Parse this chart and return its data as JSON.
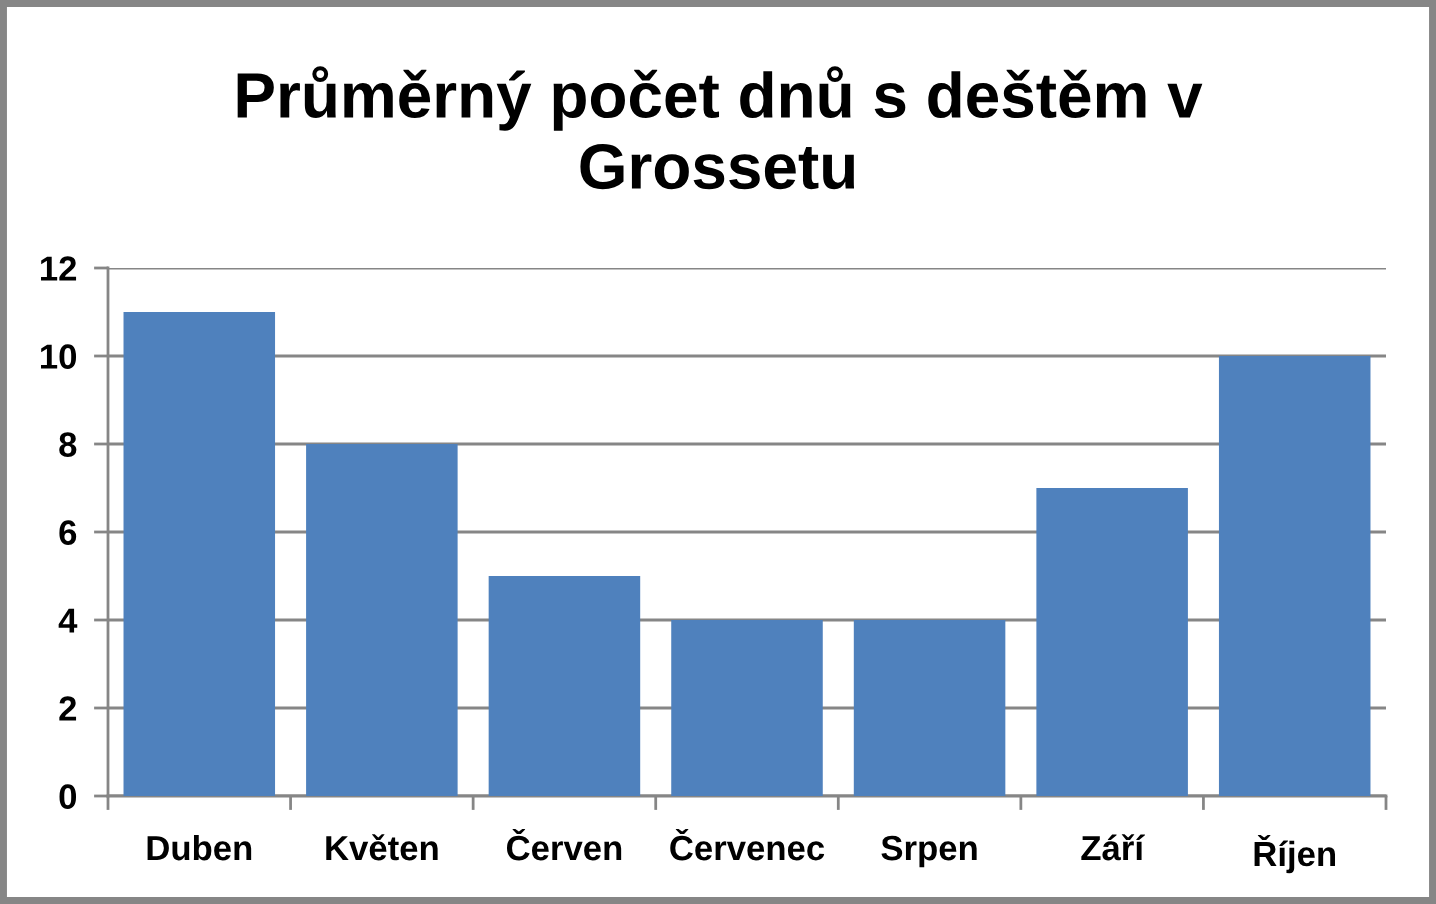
{
  "chart_data": {
    "type": "bar",
    "title": "Průměrný počet dnů s deštěm v\nGrossetu",
    "categories": [
      "Duben",
      "Květen",
      "Červen",
      "Červenec",
      "Srpen",
      "Září",
      "Říjen"
    ],
    "values": [
      11,
      8,
      5,
      4,
      4,
      7,
      10
    ],
    "color": "#4f81bd",
    "ylim": [
      0,
      12
    ],
    "yticks": [
      0,
      2,
      4,
      6,
      8,
      10,
      12
    ],
    "grid": "y"
  }
}
